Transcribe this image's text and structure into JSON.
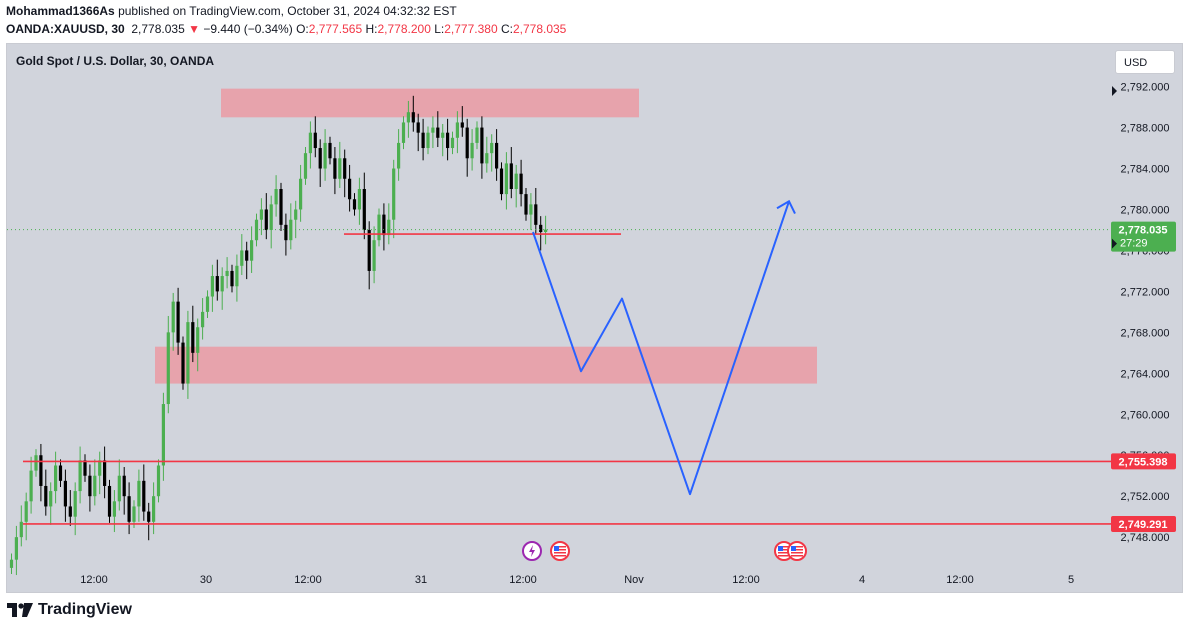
{
  "header": {
    "author": "Mohammad1366As",
    "published_text": "published on TradingView.com, October 31, 2024 04:32:32 EST",
    "symbol": "OANDA:XAUUSD, 30",
    "last_price": "2,778.035",
    "change_arrow": "▼",
    "change": "−9.440 (−0.34%)",
    "o_label": "O:",
    "o_value": "2,777.565",
    "h_label": "H:",
    "h_value": "2,778.200",
    "l_label": "L:",
    "l_value": "2,777.380",
    "c_label": "C:",
    "c_value": "2,778.035"
  },
  "chart_title": "Gold Spot / U.S. Dollar, 30, OANDA",
  "currency_button": "USD",
  "footer": {
    "brand": "TradingView"
  },
  "colors": {
    "background": "#d1d4dc",
    "up": "#4caf50",
    "down": "#000000",
    "zone": "#eb9aa3",
    "level": "#f23645",
    "projection": "#2962ff"
  },
  "chart_data": {
    "type": "candlestick",
    "title": "Gold Spot / U.S. Dollar, 30, OANDA",
    "ylim": [
      2746,
      2794
    ],
    "x_tick_labels": [
      "12:00",
      "30",
      "12:00",
      "31",
      "12:00",
      "Nov",
      "12:00",
      "4",
      "12:00",
      "5"
    ],
    "y_tick_values": [
      2748,
      2752,
      2756,
      2760,
      2764,
      2768,
      2772,
      2776,
      2780,
      2784,
      2788,
      2792
    ],
    "y_tick_labels": [
      "2,748.000",
      "2,752.000",
      "2,756.000",
      "2,760.000",
      "2,764.000",
      "2,768.000",
      "2,772.000",
      "2,776.000",
      "2,780.000",
      "2,784.000",
      "2,788.000",
      "2,792.000"
    ],
    "candles_close": [
      2745.8,
      2748.0,
      2749.5,
      2751.5,
      2754.5,
      2756.0,
      2753.0,
      2751.0,
      2752.5,
      2755.0,
      2753.5,
      2751.0,
      2750.0,
      2752.5,
      2755.5,
      2754.0,
      2752.0,
      2754.0,
      2755.5,
      2753.0,
      2750.0,
      2751.5,
      2754.0,
      2752.0,
      2749.5,
      2751.0,
      2753.5,
      2750.5,
      2749.5,
      2752.0,
      2755.0,
      2761.0,
      2768.0,
      2771.0,
      2767.0,
      2763.0,
      2769.0,
      2766.0,
      2768.5,
      2770.0,
      2771.5,
      2773.5,
      2772.0,
      2773.5,
      2774.0,
      2772.5,
      2774.5,
      2776.0,
      2775.0,
      2777.0,
      2779.0,
      2780.0,
      2778.0,
      2780.5,
      2782.0,
      2778.5,
      2777.0,
      2779.0,
      2780.0,
      2783.0,
      2785.5,
      2787.5,
      2786.0,
      2784.0,
      2786.5,
      2785.0,
      2783.0,
      2785.0,
      2783.0,
      2781.0,
      2780.0,
      2782.0,
      2778.0,
      2774.0,
      2777.0,
      2779.5,
      2777.5,
      2779.0,
      2784.0,
      2786.5,
      2788.5,
      2789.5,
      2788.5,
      2787.5,
      2786.0,
      2787.5,
      2788.0,
      2787.0,
      2787.5,
      2786.0,
      2787.0,
      2788.5,
      2788.0,
      2785.0,
      2786.5,
      2788.0,
      2784.5,
      2785.5,
      2786.5,
      2784.0,
      2781.5,
      2784.5,
      2782.0,
      2783.5,
      2781.5,
      2779.5,
      2780.5,
      2778.5,
      2777.8,
      2778.035
    ],
    "zones": [
      {
        "from": 2789.0,
        "to": 2791.8
      },
      {
        "from": 2763.0,
        "to": 2766.6
      }
    ],
    "horizontal_lines": [
      {
        "value": 2777.6,
        "label": ""
      },
      {
        "value": 2755.398,
        "label": "2,755.398"
      },
      {
        "value": 2749.291,
        "label": "2,749.291"
      }
    ],
    "projection_path": [
      {
        "time": "Oct 31 12:30",
        "price": 2777.8
      },
      {
        "time": "Oct 31 15:00",
        "price": 2764.2
      },
      {
        "time": "Oct 31 17:00",
        "price": 2771.3
      },
      {
        "time": "Nov 1 03:00",
        "price": 2752.2
      },
      {
        "time": "Nov 1 07:00",
        "price": 2780.8
      }
    ],
    "projection_end_price": 2779.6,
    "price_label": {
      "value": "2,778.035",
      "timer": "27:29"
    },
    "event_icons": [
      "lightning-event",
      "us-flag-event",
      "us-flag-event",
      "us-flag-event"
    ]
  }
}
